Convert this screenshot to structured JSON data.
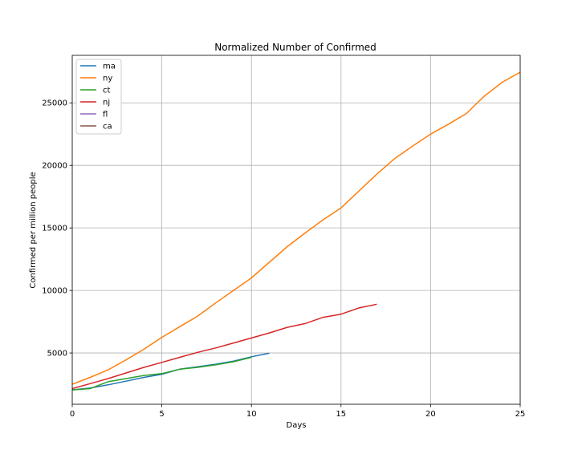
{
  "chart_data": {
    "type": "line",
    "title": "Normalized Number of Confirmed",
    "xlabel": "Days",
    "ylabel": "Confirmed per million people",
    "xlim": [
      0,
      25
    ],
    "ylim": [
      900,
      28800
    ],
    "xticks": [
      0,
      5,
      10,
      15,
      20,
      25
    ],
    "yticks": [
      5000,
      10000,
      15000,
      20000,
      25000
    ],
    "grid": true,
    "legend_position": "top-left",
    "series": [
      {
        "name": "ma",
        "color": "#1f77b4",
        "x": [
          0,
          1,
          2,
          3,
          4,
          5,
          6,
          7,
          8,
          9,
          10,
          11
        ],
        "y": [
          2050,
          2200,
          2450,
          2750,
          3050,
          3300,
          3700,
          3900,
          4100,
          4350,
          4700,
          4980
        ]
      },
      {
        "name": "ny",
        "color": "#ff7f0e",
        "x": [
          0,
          1,
          2,
          3,
          4,
          5,
          6,
          7,
          8,
          9,
          10,
          11,
          12,
          13,
          14,
          15,
          16,
          17,
          18,
          19,
          20,
          21,
          22,
          23,
          24,
          25
        ],
        "y": [
          2500,
          3050,
          3650,
          4450,
          5300,
          6250,
          7100,
          7950,
          9000,
          10000,
          11000,
          12250,
          13500,
          14600,
          15650,
          16600,
          17950,
          19300,
          20550,
          21550,
          22500,
          23300,
          24150,
          25550,
          26650,
          27450
        ]
      },
      {
        "name": "ct",
        "color": "#2ca02c",
        "x": [
          0,
          1,
          2,
          3,
          4,
          5,
          6,
          7,
          8,
          9,
          10
        ],
        "y": [
          2050,
          2150,
          2700,
          2950,
          3200,
          3350,
          3700,
          3850,
          4050,
          4300,
          4650
        ]
      },
      {
        "name": "nj",
        "color": "#d62728",
        "x": [
          0,
          1,
          2,
          3,
          4,
          5,
          6,
          7,
          8,
          9,
          10,
          11,
          12,
          13,
          14,
          15,
          16,
          17
        ],
        "y": [
          2150,
          2550,
          2950,
          3400,
          3850,
          4250,
          4650,
          5050,
          5400,
          5800,
          6200,
          6600,
          7050,
          7350,
          7850,
          8100,
          8600,
          8900
        ]
      },
      {
        "name": "fl",
        "color": "#9467bd",
        "x": [],
        "y": []
      },
      {
        "name": "ca",
        "color": "#8c564b",
        "x": [],
        "y": []
      }
    ]
  }
}
